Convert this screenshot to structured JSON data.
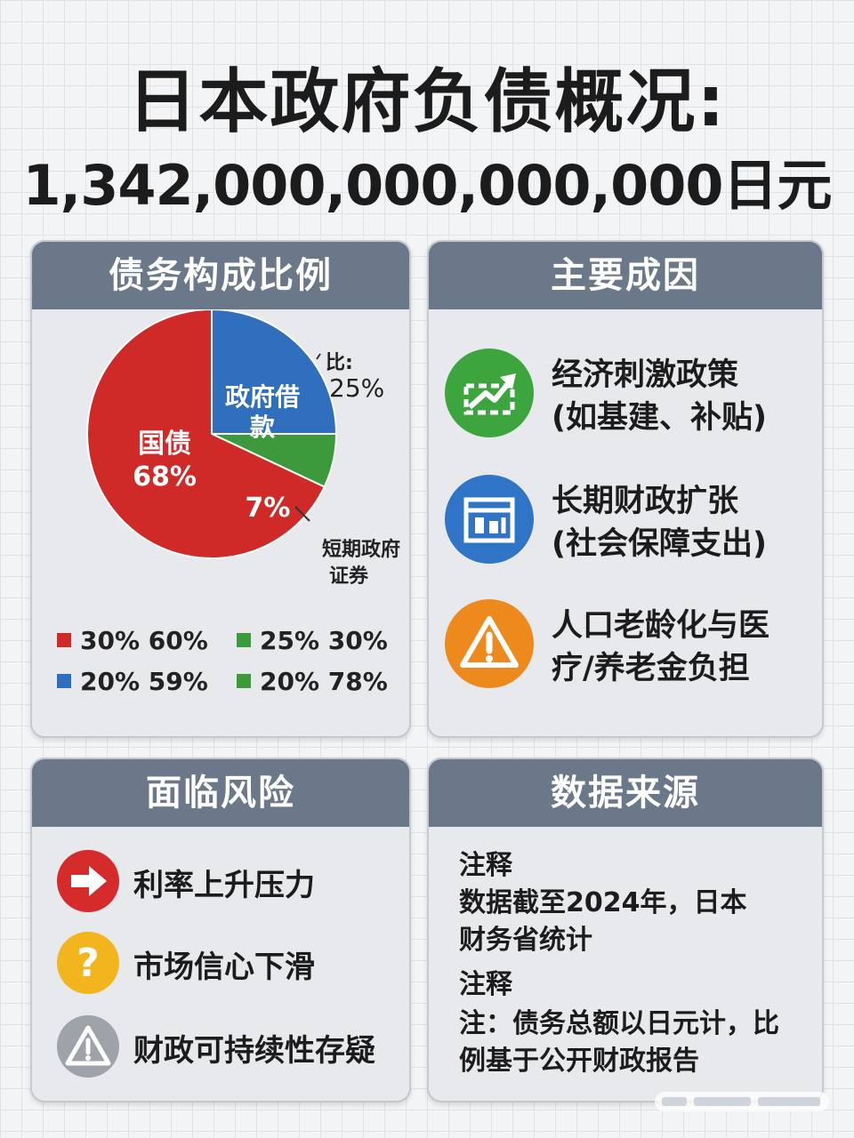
{
  "title_line1": "日本政府负债概况:",
  "title_line2": "1,342,000,000,000,000日元",
  "composition": {
    "header": "债务构成比例",
    "slices": [
      {
        "label": "国债",
        "value_text": "68%",
        "color": "#cf2a27"
      },
      {
        "label": "政府借款",
        "value_text": "",
        "color": "#2f6fbd"
      },
      {
        "label": "",
        "value_text": "7%",
        "color": "#3c9a3c"
      }
    ],
    "annotation_top": "比:",
    "annotation_top_value": "25%",
    "annotation_bottom_line1": "短期政府",
    "annotation_bottom_line2": "证券",
    "legend": [
      {
        "text": "30% 60%",
        "color": "#cf2a27"
      },
      {
        "text": "25% 30%",
        "color": "#3c9a3c"
      },
      {
        "text": "20% 59%",
        "color": "#2f6fbd"
      },
      {
        "text": "20% 78%",
        "color": "#3c9a3c"
      }
    ]
  },
  "chart_data": {
    "type": "pie",
    "title": "债务构成比例",
    "labels": [
      "国债",
      "政府借款",
      "短期政府证券"
    ],
    "values": [
      68,
      25,
      7
    ],
    "colors": [
      "#cf2a27",
      "#2f6fbd",
      "#3c9a3c"
    ]
  },
  "causes": {
    "header": "主要成因",
    "items": [
      {
        "line1": "经济刺激政策",
        "line2": "(如基建、补贴)",
        "icon": "chart-up-icon",
        "color": "#3da53d"
      },
      {
        "line1": "长期财政扩张",
        "line2": "(社会保障支出)",
        "icon": "calendar-icon",
        "color": "#2f74c7"
      },
      {
        "line1": "人口老龄化与医",
        "line2": "疗/养老金负担",
        "icon": "warning-icon",
        "color": "#ee8a1d"
      }
    ]
  },
  "risks": {
    "header": "面临风险",
    "items": [
      {
        "text": "利率上升压力",
        "icon": "arrow-right-icon",
        "color": "#d62b2b"
      },
      {
        "text": "市场信心下滑",
        "icon": "question-icon",
        "color": "#f2b51e"
      },
      {
        "text": "财政可持续性存疑",
        "icon": "warning-icon",
        "color": "#9ea3aa"
      }
    ]
  },
  "source": {
    "header": "数据来源",
    "lines": [
      "注释",
      "数据截至2024年，日本",
      "财务省统计",
      "注释",
      "注：债务总额以日元计，比",
      "例基于公开财政报告"
    ]
  }
}
